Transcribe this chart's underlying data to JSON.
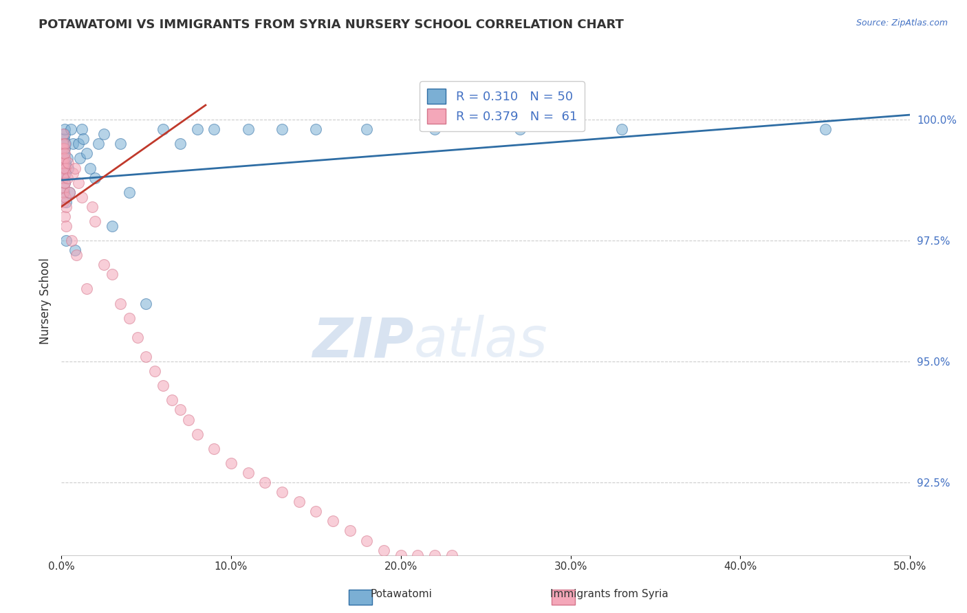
{
  "title": "POTAWATOMI VS IMMIGRANTS FROM SYRIA NURSERY SCHOOL CORRELATION CHART",
  "source_text": "Source: ZipAtlas.com",
  "ylabel": "Nursery School",
  "xlim": [
    0.0,
    50.0
  ],
  "ylim": [
    91.0,
    101.5
  ],
  "yticks": [
    92.5,
    95.0,
    97.5,
    100.0
  ],
  "xtick_labels": [
    "0.0%",
    "10.0%",
    "20.0%",
    "30.0%",
    "40.0%",
    "50.0%"
  ],
  "ytick_labels": [
    "92.5%",
    "95.0%",
    "97.5%",
    "100.0%"
  ],
  "blue_color": "#7bafd4",
  "pink_color": "#f4a7b9",
  "trendline_blue": "#2e6da4",
  "trendline_pink": "#c0392b",
  "legend_R_blue": "R = 0.310",
  "legend_N_blue": "N = 50",
  "legend_R_pink": "R = 0.379",
  "legend_N_pink": "N =  61",
  "watermark_zip": "ZIP",
  "watermark_atlas": "atlas",
  "blue_x": [
    0.05,
    0.08,
    0.1,
    0.12,
    0.13,
    0.14,
    0.15,
    0.16,
    0.17,
    0.18,
    0.19,
    0.2,
    0.21,
    0.22,
    0.23,
    0.24,
    0.26,
    0.28,
    0.3,
    0.35,
    0.4,
    0.5,
    0.55,
    0.7,
    0.8,
    1.0,
    1.1,
    1.2,
    1.3,
    1.5,
    1.7,
    2.0,
    2.2,
    2.5,
    3.0,
    3.5,
    4.0,
    5.0,
    6.0,
    7.0,
    8.0,
    9.0,
    11.0,
    13.0,
    15.0,
    18.0,
    22.0,
    27.0,
    33.0,
    45.0
  ],
  "blue_y": [
    99.4,
    99.2,
    99.5,
    99.1,
    98.8,
    99.0,
    99.6,
    99.3,
    98.5,
    99.7,
    99.0,
    98.7,
    99.8,
    99.4,
    98.9,
    99.1,
    99.5,
    98.3,
    97.5,
    99.2,
    99.0,
    98.5,
    99.8,
    99.5,
    97.3,
    99.5,
    99.2,
    99.8,
    99.6,
    99.3,
    99.0,
    98.8,
    99.5,
    99.7,
    97.8,
    99.5,
    98.5,
    96.2,
    99.8,
    99.5,
    99.8,
    99.8,
    99.8,
    99.8,
    99.8,
    99.8,
    99.8,
    99.8,
    99.8,
    99.8
  ],
  "pink_x": [
    0.05,
    0.06,
    0.07,
    0.08,
    0.09,
    0.1,
    0.11,
    0.12,
    0.13,
    0.14,
    0.15,
    0.16,
    0.17,
    0.18,
    0.19,
    0.2,
    0.21,
    0.22,
    0.23,
    0.25,
    0.27,
    0.3,
    0.35,
    0.4,
    0.5,
    0.6,
    0.7,
    0.8,
    0.9,
    1.0,
    1.2,
    1.5,
    1.8,
    2.0,
    2.5,
    3.0,
    3.5,
    4.0,
    4.5,
    5.0,
    5.5,
    6.0,
    6.5,
    7.0,
    7.5,
    8.0,
    9.0,
    10.0,
    11.0,
    12.0,
    13.0,
    14.0,
    15.0,
    16.0,
    17.0,
    18.0,
    19.0,
    20.0,
    21.0,
    22.0,
    23.0
  ],
  "pink_y": [
    99.4,
    99.1,
    98.8,
    99.5,
    99.2,
    98.5,
    99.0,
    99.7,
    98.3,
    99.1,
    98.9,
    99.4,
    98.6,
    99.2,
    98.0,
    99.5,
    98.7,
    99.3,
    98.4,
    99.0,
    98.2,
    97.8,
    98.8,
    99.1,
    98.5,
    97.5,
    98.9,
    99.0,
    97.2,
    98.7,
    98.4,
    96.5,
    98.2,
    97.9,
    97.0,
    96.8,
    96.2,
    95.9,
    95.5,
    95.1,
    94.8,
    94.5,
    94.2,
    94.0,
    93.8,
    93.5,
    93.2,
    92.9,
    92.7,
    92.5,
    92.3,
    92.1,
    91.9,
    91.7,
    91.5,
    91.3,
    91.1,
    91.0,
    91.0,
    91.0,
    91.0
  ],
  "blue_trend_x": [
    0.0,
    50.0
  ],
  "blue_trend_y": [
    98.75,
    100.1
  ],
  "pink_trend_x": [
    0.0,
    8.5
  ],
  "pink_trend_y": [
    98.2,
    100.3
  ]
}
